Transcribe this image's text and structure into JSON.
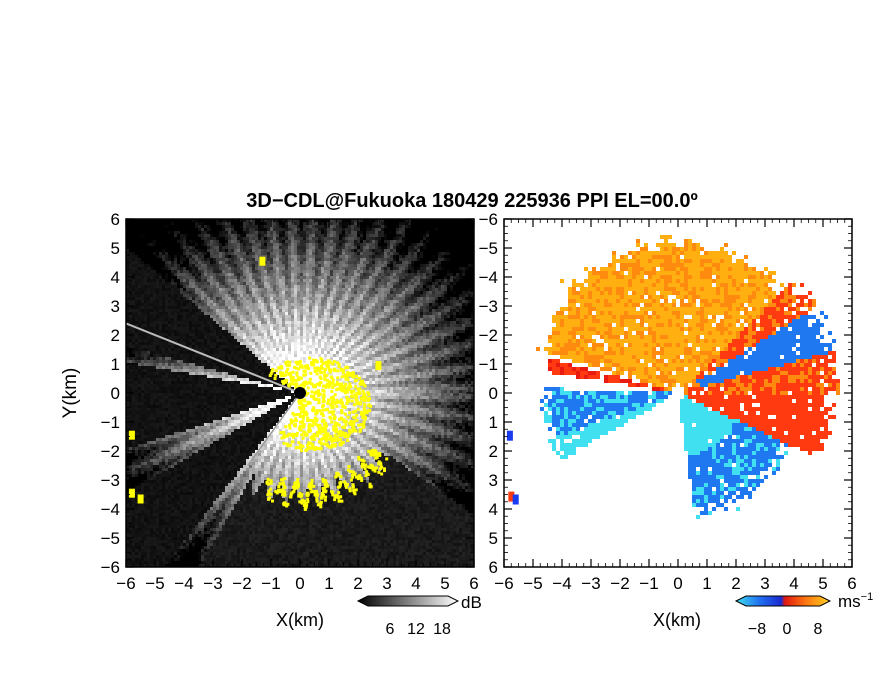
{
  "title": "3D−CDL@Fukuoka 180429 225936 PPI EL=00.0º",
  "chart_data": [
    {
      "type": "heatmap",
      "panel": "left",
      "quantity": "reflectivity",
      "xlabel": "X(km)",
      "ylabel": "Y(km)",
      "xlim": [
        -6,
        6
      ],
      "ylim": [
        -6,
        6
      ],
      "xticks": [
        "−6",
        "−5",
        "−4",
        "−3",
        "−2",
        "−1",
        "0",
        "1",
        "2",
        "3",
        "4",
        "5",
        "6"
      ],
      "yticks": [
        "−6",
        "−5",
        "−4",
        "−3",
        "−2",
        "−1",
        "0",
        "1",
        "2",
        "3",
        "4",
        "5",
        "6"
      ],
      "colorbar": {
        "unit": "dB",
        "ticks": [
          "6",
          "12",
          "18"
        ],
        "range": [
          0,
          22
        ]
      },
      "colors": {
        "background": "#1c1c1c",
        "high": "#ffffff",
        "clutter": "#ffff00"
      },
      "blocked_sectors_deg": [
        [
          140,
          165
        ],
        [
          170,
          198
        ],
        [
          210,
          232
        ]
      ]
    },
    {
      "type": "heatmap",
      "panel": "right",
      "quantity": "doppler velocity",
      "xlabel": "X(km)",
      "xlim": [
        -6,
        6
      ],
      "ylim": [
        -6,
        6
      ],
      "xticks": [
        "−6",
        "−5",
        "−4",
        "−3",
        "−2",
        "−1",
        "0",
        "1",
        "2",
        "3",
        "4",
        "5",
        "6"
      ],
      "yticks": [
        "6",
        "5",
        "4",
        "3",
        "2",
        "1",
        "0",
        "−1",
        "−2",
        "−3",
        "−4",
        "−5",
        "−6"
      ],
      "colorbar": {
        "unit": "ms",
        "unit_exp": "−1",
        "ticks": [
          "−8",
          "0",
          "8"
        ],
        "range": [
          -10,
          10
        ]
      },
      "colors": {
        "negative": "#1a3cf0",
        "strong_negative": "#40e0f0",
        "positive": "#ff3a10",
        "strong_positive": "#ffb010"
      }
    }
  ]
}
